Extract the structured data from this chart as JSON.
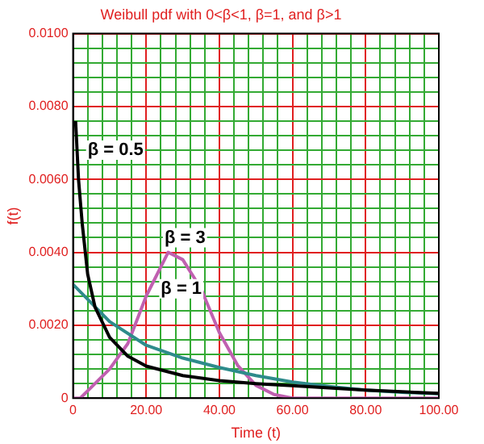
{
  "chart_data": {
    "type": "line",
    "title": "Weibull pdf with 0<β<1, β=1, and β>1",
    "xlabel": "Time (t)",
    "ylabel": "f(t)",
    "xlim": [
      0,
      100
    ],
    "ylim": [
      0,
      0.01
    ],
    "xticks": [
      {
        "value": 0,
        "label": "0"
      },
      {
        "value": 4,
        "label": null
      },
      {
        "value": 8,
        "label": null
      },
      {
        "value": 12,
        "label": null
      },
      {
        "value": 16,
        "label": null
      },
      {
        "value": 20,
        "label": "20.00"
      },
      {
        "value": 24,
        "label": null
      },
      {
        "value": 28,
        "label": null
      },
      {
        "value": 32,
        "label": null
      },
      {
        "value": 36,
        "label": null
      },
      {
        "value": 40,
        "label": "40.00"
      },
      {
        "value": 44,
        "label": null
      },
      {
        "value": 48,
        "label": null
      },
      {
        "value": 52,
        "label": null
      },
      {
        "value": 56,
        "label": null
      },
      {
        "value": 60,
        "label": "60.00"
      },
      {
        "value": 64,
        "label": null
      },
      {
        "value": 68,
        "label": null
      },
      {
        "value": 72,
        "label": null
      },
      {
        "value": 76,
        "label": null
      },
      {
        "value": 80,
        "label": "80.00"
      },
      {
        "value": 84,
        "label": null
      },
      {
        "value": 88,
        "label": null
      },
      {
        "value": 92,
        "label": null
      },
      {
        "value": 96,
        "label": null
      },
      {
        "value": 100,
        "label": "100.00"
      }
    ],
    "yticks": [
      0,
      {
        "value": 0.0004,
        "label": null
      },
      {
        "value": 0.0008,
        "label": null
      },
      {
        "value": 0.0012,
        "label": null
      },
      {
        "value": 0.0016,
        "label": null
      },
      {
        "value": 0.002,
        "label": "0.0020"
      },
      {
        "value": 0.0024,
        "label": null
      },
      {
        "value": 0.0028,
        "label": null
      },
      {
        "value": 0.0032,
        "label": null
      },
      {
        "value": 0.0036,
        "label": null
      },
      {
        "value": 0.004,
        "label": "0.0040"
      },
      {
        "value": 0.0044,
        "label": null
      },
      {
        "value": 0.0048,
        "label": null
      },
      {
        "value": 0.0052,
        "label": null
      },
      {
        "value": 0.0056,
        "label": null
      },
      {
        "value": 0.006,
        "label": "0.0060"
      },
      {
        "value": 0.0064,
        "label": null
      },
      {
        "value": 0.0068,
        "label": null
      },
      {
        "value": 0.0072,
        "label": null
      },
      {
        "value": 0.0076,
        "label": null
      },
      {
        "value": 0.008,
        "label": "0.0080"
      },
      {
        "value": 0.0084,
        "label": null
      },
      {
        "value": 0.0088,
        "label": null
      },
      {
        "value": 0.0092,
        "label": null
      },
      {
        "value": 0.0096,
        "label": null
      },
      {
        "value": 0.01,
        "label": "0.0100"
      }
    ],
    "grid": true,
    "legend": false,
    "marker": "none",
    "line_style": "solid",
    "series": [
      {
        "color": "#000000",
        "x": [
          0.7,
          1.5,
          2.5,
          4,
          6,
          10,
          15,
          20,
          30,
          40,
          50,
          60,
          80,
          100
        ],
        "values": [
          0.0076,
          0.006,
          0.0048,
          0.0034,
          0.0025,
          0.00167,
          0.00115,
          0.00088,
          0.00062,
          0.00048,
          0.0004,
          0.00034,
          0.00022,
          0.00013
        ]
      },
      {
        "color": "#2e8b8b",
        "x": [
          0,
          10,
          20,
          30,
          40,
          50,
          60,
          70,
          80,
          90,
          100
        ],
        "values": [
          0.00312,
          0.0021,
          0.00145,
          0.0011,
          0.00084,
          0.00062,
          0.00044,
          0.00032,
          0.00022,
          0.00016,
          0.00012
        ]
      },
      {
        "color": "#c060b0",
        "x": [
          0,
          2,
          10,
          15,
          20,
          26,
          30,
          35,
          40,
          45,
          50,
          55,
          60,
          100
        ],
        "values": [
          0,
          0,
          0.0008,
          0.0015,
          0.0028,
          0.004,
          0.0038,
          0.003,
          0.0018,
          0.0009,
          0.00035,
          0.0001,
          0,
          0
        ]
      }
    ],
    "annotations": [
      "β = 0.5",
      "β = 1",
      "β = 3"
    ]
  }
}
